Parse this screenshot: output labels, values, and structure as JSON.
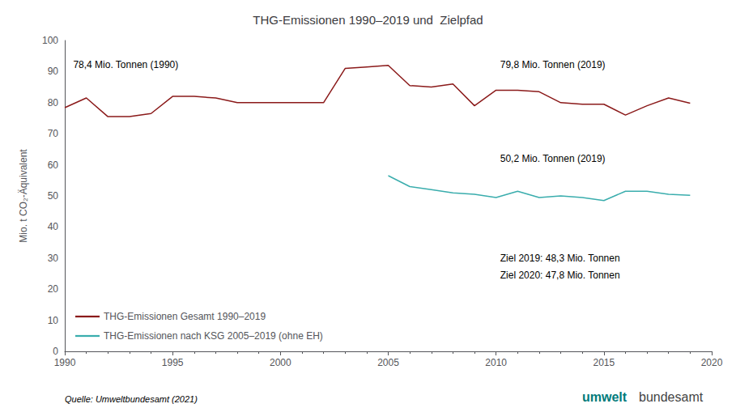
{
  "chart_data": {
    "type": "line",
    "title": "THG-Emissionen 1990–2019 und  Zielpfad",
    "ylabel": "Mio. t CO₂-Äquivalent",
    "xlim": [
      1990,
      2020
    ],
    "xticks": [
      1990,
      1995,
      2000,
      2005,
      2010,
      2015,
      2020
    ],
    "ylim": [
      0,
      100
    ],
    "yticks": [
      0,
      10,
      20,
      30,
      40,
      50,
      60,
      70,
      80,
      90,
      100
    ],
    "grid": false,
    "legend": "lower left",
    "series": [
      {
        "name": "THG-Emissionen Gesamt 1990–2019",
        "color": "#8B1A1A",
        "x": [
          1990,
          1991,
          1992,
          1993,
          1994,
          1995,
          1996,
          1997,
          1998,
          1999,
          2000,
          2001,
          2002,
          2003,
          2004,
          2005,
          2006,
          2007,
          2008,
          2009,
          2010,
          2011,
          2012,
          2013,
          2014,
          2015,
          2016,
          2017,
          2018,
          2019
        ],
        "values": [
          78.4,
          81.5,
          75.5,
          75.5,
          76.5,
          82.0,
          82.0,
          81.5,
          80.0,
          80.0,
          80.0,
          80.0,
          80.0,
          91.0,
          91.5,
          92.0,
          85.5,
          85.0,
          86.0,
          79.0,
          84.0,
          84.0,
          83.5,
          80.0,
          79.5,
          79.5,
          76.0,
          79.0,
          81.5,
          79.8
        ]
      },
      {
        "name": "THG-Emissionen nach KSG 2005–2019 (ohne EH)",
        "color": "#3AADAD",
        "x": [
          2005,
          2006,
          2007,
          2008,
          2009,
          2010,
          2011,
          2012,
          2013,
          2014,
          2015,
          2016,
          2017,
          2018,
          2019
        ],
        "values": [
          56.5,
          53.0,
          52.0,
          51.0,
          50.5,
          49.5,
          51.5,
          49.5,
          50.0,
          49.5,
          48.5,
          51.5,
          51.5,
          50.5,
          50.2
        ]
      }
    ],
    "annotations": [
      "78,4 Mio. Tonnen (1990)",
      "79,8 Mio. Tonnen (2019)",
      "50,2 Mio. Tonnen (2019)",
      "Ziel 2019: 48,3 Mio. Tonnen",
      "Ziel 2020: 47,8 Mio. Tonnen"
    ],
    "source": "Quelle: Umweltbundesamt (2021)",
    "logo": [
      {
        "text": "umwelt",
        "color": "#007B7B"
      },
      {
        "text": "bundesamt",
        "color": "#444444"
      }
    ]
  }
}
